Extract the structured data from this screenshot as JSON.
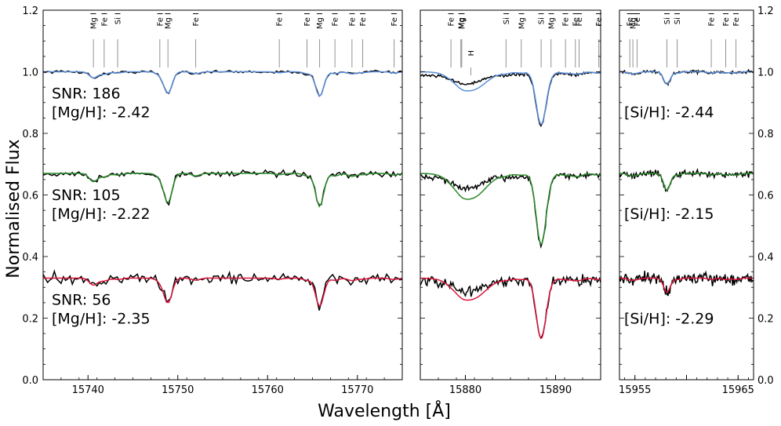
{
  "chart_data": {
    "type": "line",
    "ylabel": "Normalised Flux",
    "xlabel": "Wavelength [Å]",
    "ylim": [
      0.0,
      1.2
    ],
    "yticks": [
      "0.0",
      "0.2",
      "0.4",
      "0.6",
      "0.8",
      "1.0",
      "1.2"
    ],
    "series_colors": {
      "SNR 186": "#5b8fdb",
      "SNR 105": "#2a8a2a",
      "SNR 56": "#dc143c",
      "observed": "#000000"
    },
    "series": [
      {
        "name": "SNR 186",
        "offset": 1.0,
        "snr_label": "SNR: 186",
        "mg_label": "[Mg/H]: -2.42",
        "si_label": "[Si/H]: -2.44"
      },
      {
        "name": "SNR 105",
        "offset": 0.67,
        "snr_label": "SNR: 105",
        "mg_label": "[Mg/H]: -2.22",
        "si_label": "[Si/H]: -2.15"
      },
      {
        "name": "SNR 56",
        "offset": 0.33,
        "snr_label": "SNR: 56",
        "mg_label": "[Mg/H]: -2.35",
        "si_label": "[Si/H]: -2.29"
      }
    ],
    "panels": [
      {
        "id": "p1",
        "xlim": [
          15735,
          15775
        ],
        "xticks": [
          15740,
          15750,
          15760,
          15770
        ],
        "xtick_labels": [
          "15740",
          "15750",
          "15760",
          "15770"
        ],
        "lines": [
          {
            "wl": 15740.6,
            "label": "Mg I",
            "depth": 0.02
          },
          {
            "wl": 15741.8,
            "label": "Fe I",
            "depth": 0.008
          },
          {
            "wl": 15743.3,
            "label": "Si I",
            "depth": 0.004
          },
          {
            "wl": 15748.0,
            "label": "Fe I",
            "depth": 0.008
          },
          {
            "wl": 15748.9,
            "label": "Mg I",
            "depth": 0.07
          },
          {
            "wl": 15752.0,
            "label": "Fe I",
            "depth": 0.006
          },
          {
            "wl": 15761.3,
            "label": "Fe I",
            "depth": 0.003
          },
          {
            "wl": 15764.4,
            "label": "Fe I",
            "depth": 0.006
          },
          {
            "wl": 15765.8,
            "label": "Mg I",
            "depth": 0.08
          },
          {
            "wl": 15767.5,
            "label": "Fe I",
            "depth": 0.006
          },
          {
            "wl": 15769.4,
            "label": "Fe I",
            "depth": 0.007
          },
          {
            "wl": 15770.6,
            "label": "Fe I",
            "depth": 0.003
          },
          {
            "wl": 15774.1,
            "label": "Fe I",
            "depth": 0.004
          }
        ]
      },
      {
        "id": "p2",
        "xlim": [
          15875,
          15895
        ],
        "xticks": [
          15880,
          15890
        ],
        "xtick_labels": [
          "15880",
          "15890"
        ],
        "lines": [
          {
            "wl": 15878.4,
            "label": "Fe I",
            "depth": 0.004
          },
          {
            "wl": 15879.5,
            "label": "Mg I",
            "depth": 0.004
          },
          {
            "wl": 15879.6,
            "label": "Mg I",
            "depth": 0.004
          },
          {
            "wl": 15880.6,
            "label": "H",
            "depth": 0.06
          },
          {
            "wl": 15884.5,
            "label": "Si I",
            "depth": 0.004
          },
          {
            "wl": 15886.2,
            "label": "Mg I",
            "depth": 0.004
          },
          {
            "wl": 15888.4,
            "label": "Si I",
            "depth": 0.17
          },
          {
            "wl": 15889.5,
            "label": "Mg I",
            "depth": 0.004
          },
          {
            "wl": 15891.1,
            "label": "Fe I",
            "depth": 0.004
          },
          {
            "wl": 15892.2,
            "label": "Fe I",
            "depth": 0.004
          },
          {
            "wl": 15892.6,
            "label": "Fe I",
            "depth": 0.004
          },
          {
            "wl": 15894.8,
            "label": "Fe I",
            "depth": 0.004
          }
        ]
      },
      {
        "id": "p3",
        "xlim": [
          15953.5,
          15966.5
        ],
        "xticks": [
          15955,
          15960,
          15965
        ],
        "xtick_labels": [
          "15955",
          "",
          "15965"
        ],
        "lines": [
          {
            "wl": 15954.5,
            "label": "Fe I",
            "depth": 0.003
          },
          {
            "wl": 15954.8,
            "label": "Mg I",
            "depth": 0.003
          },
          {
            "wl": 15955.2,
            "label": "Fe I",
            "depth": 0.003
          },
          {
            "wl": 15958.1,
            "label": "Si I",
            "depth": 0.04
          },
          {
            "wl": 15959.1,
            "label": "Si I",
            "depth": 0.004
          },
          {
            "wl": 15962.4,
            "label": "Fe I",
            "depth": 0.004
          },
          {
            "wl": 15963.8,
            "label": "Fe I",
            "depth": 0.004
          },
          {
            "wl": 15964.8,
            "label": "Fe I",
            "depth": 0.004
          }
        ]
      }
    ]
  }
}
